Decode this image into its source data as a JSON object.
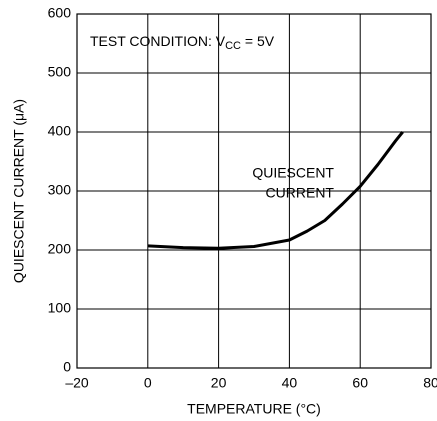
{
  "chart_data": {
    "type": "line",
    "xlabel": "TEMPERATURE (°C)",
    "ylabel": "QUIESCENT CURRENT (μA)",
    "annotation": {
      "text": "TEST CONDITION: V",
      "subscript": "CC",
      "suffix": " = 5V"
    },
    "curve_label": [
      "QUIESCENT",
      "CURRENT"
    ],
    "x": [
      0,
      10,
      20,
      30,
      40,
      45,
      50,
      55,
      60,
      65,
      70,
      72
    ],
    "values": [
      207,
      204,
      203,
      206,
      217,
      232,
      250,
      278,
      308,
      345,
      385,
      400
    ],
    "color": "#000000",
    "xlim": [
      -20,
      80
    ],
    "xticks": [
      {
        "value": -20,
        "label": "–20"
      },
      0,
      20,
      40,
      60,
      80
    ],
    "ylim": [
      0,
      600
    ],
    "yticks": [
      0,
      100,
      200,
      300,
      400,
      500,
      600
    ],
    "grid": true
  }
}
